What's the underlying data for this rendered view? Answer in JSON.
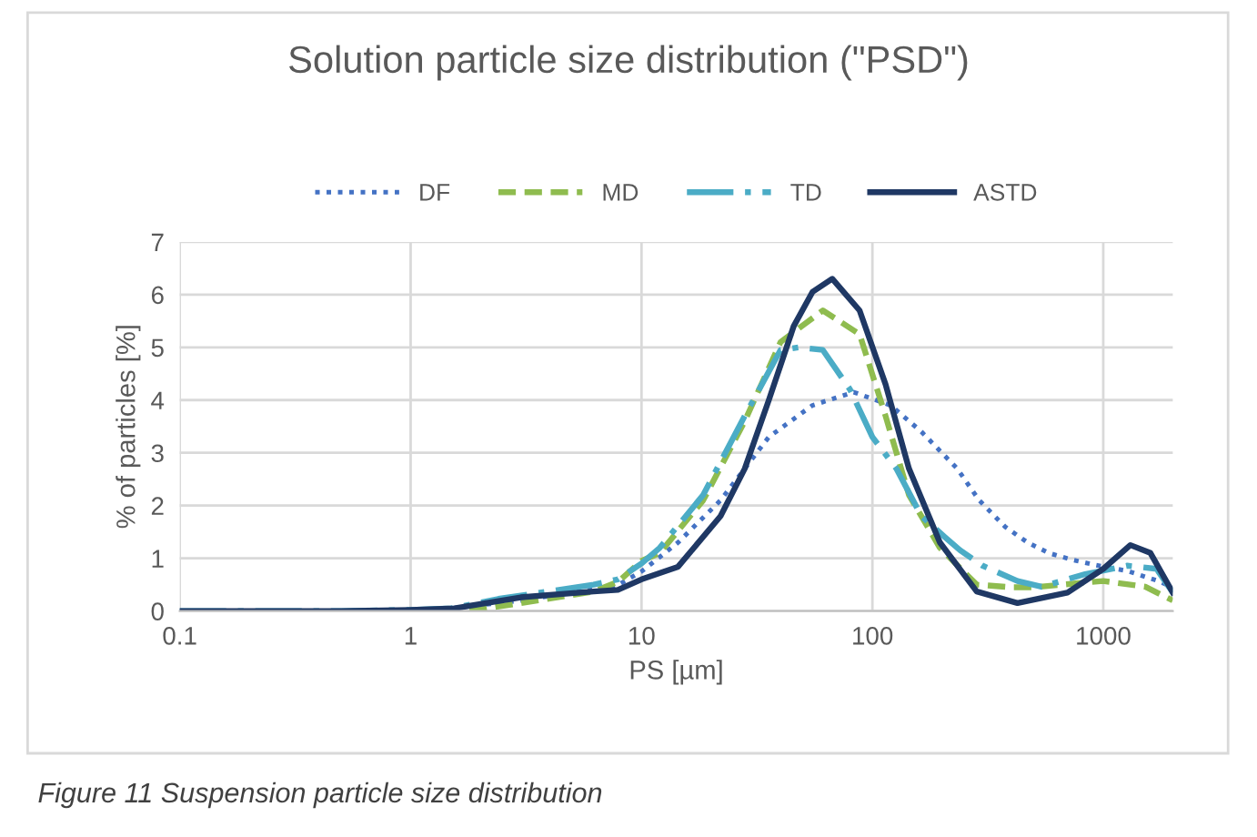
{
  "chart_data": {
    "type": "line",
    "title": "Solution particle size distribution (\"PSD\")",
    "xlabel": "PS [µm]",
    "ylabel": "% of particles [%]",
    "annotations": [
      "Figure 11 Suspension particle size distribution"
    ],
    "log": "x",
    "xlim": [
      0.1,
      2000
    ],
    "xticks": [
      0.1,
      1,
      10,
      100,
      1000
    ],
    "ylim": [
      0,
      7
    ],
    "yticks": [
      0,
      1,
      2,
      3,
      4,
      5,
      6,
      7
    ],
    "grid": true,
    "legend": "top",
    "series": [
      {
        "name": "DF",
        "color": "#4472c4",
        "line_style": "dotted",
        "x": [
          0.1,
          0.5,
          1,
          1.5,
          3,
          6,
          7.9,
          10,
          14.4,
          22,
          35.6,
          55,
          83,
          120,
          163,
          233,
          290,
          375,
          470,
          580,
          735,
          930,
          1270,
          1700,
          2000
        ],
        "values": [
          0,
          0,
          0.02,
          0.05,
          0.2,
          0.4,
          0.49,
          0.75,
          1.3,
          2.1,
          3.3,
          3.9,
          4.15,
          3.9,
          3.4,
          2.7,
          2.1,
          1.6,
          1.3,
          1.1,
          0.97,
          0.87,
          0.76,
          0.58,
          0.45
        ]
      },
      {
        "name": "MD",
        "color": "#8fbc4f",
        "line_style": "dashed",
        "x": [
          1.8,
          3,
          6.2,
          7.9,
          10,
          12,
          18.5,
          28,
          40,
          61,
          88,
          114,
          144,
          196,
          283,
          400,
          500,
          1000,
          1520,
          2000
        ],
        "values": [
          0,
          0.15,
          0.37,
          0.55,
          0.95,
          1.1,
          2.1,
          3.6,
          5.1,
          5.7,
          5.25,
          3.7,
          2.2,
          1.2,
          0.5,
          0.45,
          0.45,
          0.57,
          0.46,
          0.2
        ]
      },
      {
        "name": "TD",
        "color": "#4bacc6",
        "line_style": "dashdot",
        "x": [
          0.1,
          0.5,
          1,
          1.5,
          2.4,
          6.2,
          7.9,
          10,
          12,
          18.5,
          28,
          40,
          48,
          61,
          80,
          100,
          127,
          163,
          206,
          240,
          300,
          425,
          540,
          835,
          1270,
          1700,
          2000
        ],
        "values": [
          0,
          0,
          0.02,
          0.05,
          0.23,
          0.5,
          0.6,
          0.9,
          1.2,
          2.2,
          3.7,
          4.95,
          5.0,
          4.95,
          4.2,
          3.3,
          2.7,
          1.8,
          1.4,
          1.15,
          0.86,
          0.57,
          0.46,
          0.7,
          0.86,
          0.8,
          0.35
        ]
      },
      {
        "name": "ASTD",
        "color": "#1f3864",
        "line_style": "solid",
        "x": [
          0.1,
          0.5,
          1,
          1.55,
          3,
          6.2,
          7.9,
          10,
          14.4,
          22,
          28,
          35.6,
          45.6,
          55,
          67,
          88,
          114,
          144,
          196,
          283,
          425,
          700,
          1000,
          1310,
          1600,
          2000
        ],
        "values": [
          0,
          0,
          0.02,
          0.05,
          0.26,
          0.37,
          0.4,
          0.6,
          0.84,
          1.8,
          2.7,
          4.0,
          5.4,
          6.05,
          6.3,
          5.7,
          4.3,
          2.7,
          1.3,
          0.37,
          0.15,
          0.35,
          0.8,
          1.25,
          1.1,
          0.35
        ]
      }
    ]
  }
}
